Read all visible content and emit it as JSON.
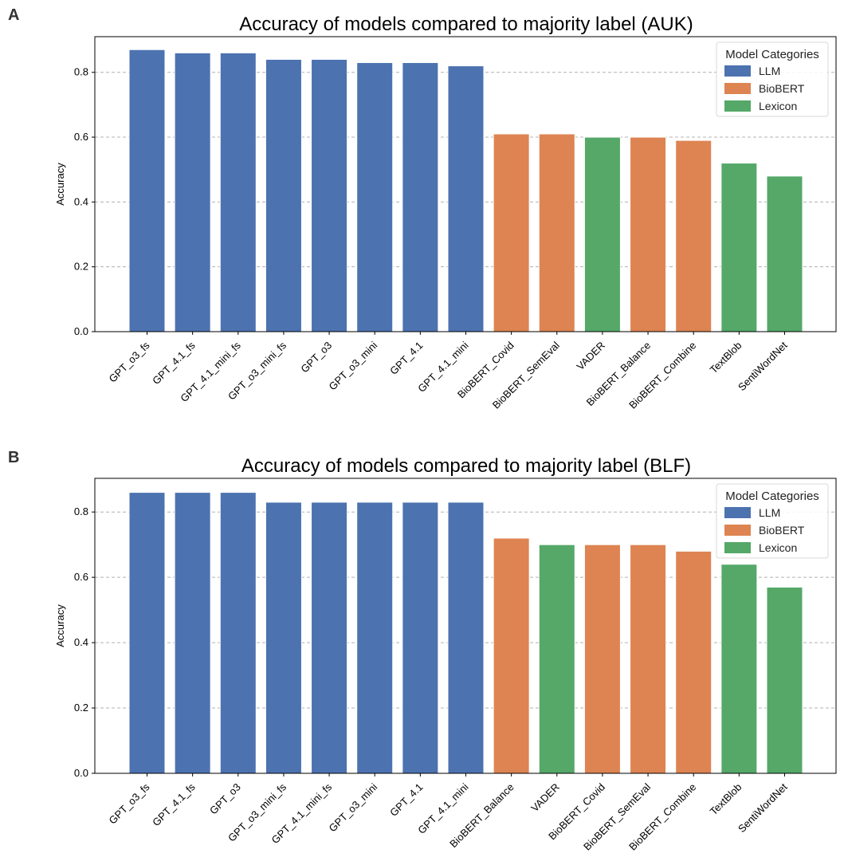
{
  "colors": {
    "LLM": "#4c72b0",
    "BioBERT": "#dd8452",
    "Lexicon": "#55a868",
    "grid": "#b0b0b0",
    "axis": "#000000"
  },
  "chart_data": [
    {
      "panel": "A",
      "type": "bar",
      "title": "Accuracy of models compared to majority label (AUK)",
      "xlabel": "",
      "ylabel": "Accuracy",
      "ylim": [
        0,
        0.91
      ],
      "yticks": [
        "0.0",
        "0.2",
        "0.4",
        "0.6",
        "0.8"
      ],
      "grid": "y-dashed",
      "legend": {
        "title": "Model Categories",
        "position": "top-right",
        "entries": [
          "LLM",
          "BioBERT",
          "Lexicon"
        ]
      },
      "categories": [
        "GPT_o3_fs",
        "GPT_4.1_fs",
        "GPT_4.1_mini_fs",
        "GPT_o3_mini_fs",
        "GPT_o3",
        "GPT_o3_mini",
        "GPT_4.1",
        "GPT_4.1_mini",
        "BioBERT_Covid",
        "BioBERT_SemEval",
        "VADER",
        "BioBERT_Balance",
        "BioBERT_Combine",
        "TextBlob",
        "SentiWordNet"
      ],
      "values": [
        0.87,
        0.86,
        0.86,
        0.84,
        0.84,
        0.83,
        0.83,
        0.82,
        0.61,
        0.61,
        0.6,
        0.6,
        0.59,
        0.52,
        0.48
      ],
      "groups": [
        "LLM",
        "LLM",
        "LLM",
        "LLM",
        "LLM",
        "LLM",
        "LLM",
        "LLM",
        "BioBERT",
        "BioBERT",
        "Lexicon",
        "BioBERT",
        "BioBERT",
        "Lexicon",
        "Lexicon"
      ]
    },
    {
      "panel": "B",
      "type": "bar",
      "title": "Accuracy of models compared to majority label (BLF)",
      "xlabel": "",
      "ylabel": "Accuracy",
      "ylim": [
        0,
        0.903
      ],
      "yticks": [
        "0.0",
        "0.2",
        "0.4",
        "0.6",
        "0.8"
      ],
      "grid": "y-dashed",
      "legend": {
        "title": "Model Categories",
        "position": "top-right",
        "entries": [
          "LLM",
          "BioBERT",
          "Lexicon"
        ]
      },
      "categories": [
        "GPT_o3_fs",
        "GPT_4.1_fs",
        "GPT_o3",
        "GPT_o3_mini_fs",
        "GPT_4.1_mini_fs",
        "GPT_o3_mini",
        "GPT_4.1",
        "GPT_4.1_mini",
        "BioBERT_Balance",
        "VADER",
        "BioBERT_Covid",
        "BioBERT_SemEval",
        "BioBERT_Combine",
        "TextBlob",
        "SentiWordNet"
      ],
      "values": [
        0.86,
        0.86,
        0.86,
        0.83,
        0.83,
        0.83,
        0.83,
        0.83,
        0.72,
        0.7,
        0.7,
        0.7,
        0.68,
        0.64,
        0.57
      ],
      "groups": [
        "LLM",
        "LLM",
        "LLM",
        "LLM",
        "LLM",
        "LLM",
        "LLM",
        "LLM",
        "BioBERT",
        "Lexicon",
        "BioBERT",
        "BioBERT",
        "BioBERT",
        "Lexicon",
        "Lexicon"
      ]
    }
  ]
}
